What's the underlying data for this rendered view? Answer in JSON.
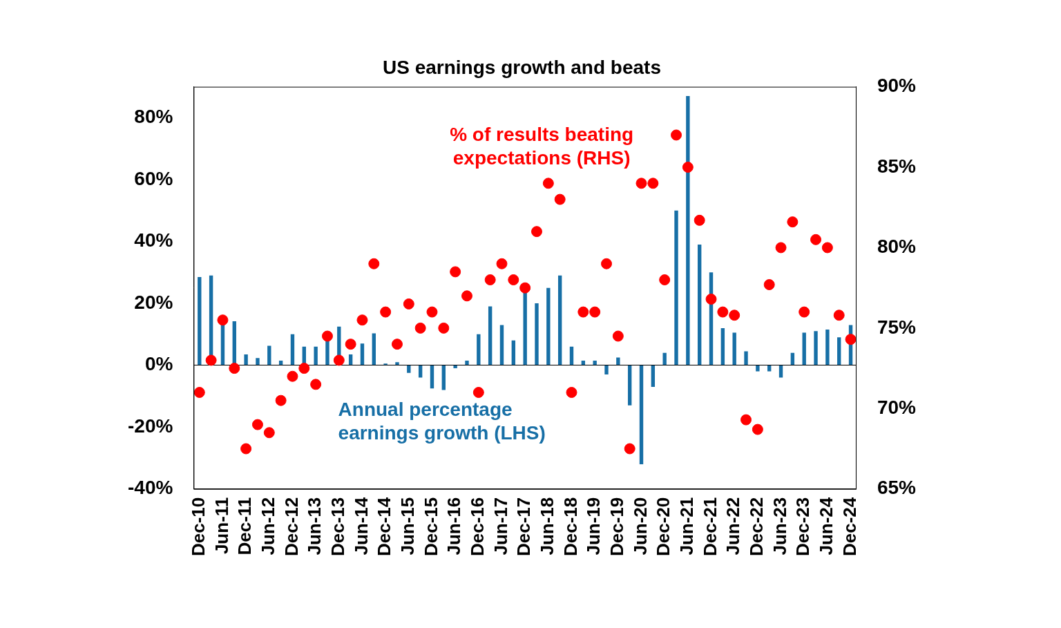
{
  "chart_data": {
    "type": "bar",
    "title": "US earnings growth and beats",
    "categories": [
      "Dec-10",
      null,
      "Jun-11",
      null,
      "Dec-11",
      null,
      "Jun-12",
      null,
      "Dec-12",
      null,
      "Jun-13",
      null,
      "Dec-13",
      null,
      "Jun-14",
      null,
      "Dec-14",
      null,
      "Jun-15",
      null,
      "Dec-15",
      null,
      "Jun-16",
      null,
      "Dec-16",
      null,
      "Jun-17",
      null,
      "Dec-17",
      null,
      "Jun-18",
      null,
      "Dec-18",
      null,
      "Jun-19",
      null,
      "Dec-19",
      null,
      "Jun-20",
      null,
      "Dec-20",
      null,
      "Jun-21",
      null,
      "Dec-21",
      null,
      "Jun-22",
      null,
      "Dec-22",
      null,
      "Jun-23",
      null,
      "Dec-23",
      null,
      "Jun-24",
      null,
      "Dec-24"
    ],
    "series": [
      {
        "name": "Annual percentage earnings growth (LHS)",
        "type": "bar",
        "color": "#176fa6",
        "axis": "y",
        "values": [
          28.5,
          29,
          14,
          14.2,
          3.5,
          2.3,
          6.3,
          1.5,
          10,
          6,
          6,
          8,
          12.5,
          3.5,
          7,
          10.3,
          0.5,
          1,
          -2.5,
          -4,
          -7.5,
          -8,
          -1,
          1.5,
          10,
          19,
          13,
          8,
          24,
          20,
          25,
          29,
          6,
          1.5,
          1.5,
          -3,
          2.5,
          -13,
          -32,
          -7,
          4,
          50,
          87,
          39,
          30,
          12,
          10.5,
          4.5,
          -2,
          -2,
          -4,
          4,
          10.5,
          11,
          11.5,
          9,
          13
        ]
      },
      {
        "name": "% of results beating expectations (RHS)",
        "type": "scatter",
        "marker": "circle",
        "color": "#ff0000",
        "axis": "y2",
        "values": [
          71,
          73,
          75.5,
          72.5,
          67.5,
          69,
          68.5,
          70.5,
          72,
          72.5,
          71.5,
          74.5,
          73,
          74,
          75.5,
          79,
          76,
          74,
          76.5,
          75,
          76,
          75,
          78.5,
          77,
          71,
          78,
          79,
          78,
          77.5,
          81,
          84,
          83,
          71,
          76,
          76,
          79,
          74.5,
          67.5,
          84,
          84,
          78,
          87,
          85,
          81.7,
          76.8,
          76,
          75.8,
          69.3,
          68.7,
          77.7,
          80,
          81.6,
          76,
          80.5,
          80,
          75.8,
          74.3
        ]
      }
    ],
    "ylim": [
      -40,
      90
    ],
    "yticks": [
      {
        "value": -40,
        "label": "-40%"
      },
      {
        "value": -20,
        "label": "-20%"
      },
      {
        "value": 0,
        "label": "0%"
      },
      {
        "value": 20,
        "label": "20%"
      },
      {
        "value": 40,
        "label": "40%"
      },
      {
        "value": 60,
        "label": "60%"
      },
      {
        "value": 80,
        "label": "80%"
      }
    ],
    "y2lim": [
      65,
      90
    ],
    "y2ticks": [
      {
        "value": 65,
        "label": "65%"
      },
      {
        "value": 70,
        "label": "70%"
      },
      {
        "value": 75,
        "label": "75%"
      },
      {
        "value": 80,
        "label": "80%"
      },
      {
        "value": 85,
        "label": "85%"
      },
      {
        "value": 90,
        "label": "90%"
      }
    ],
    "grid": false
  }
}
